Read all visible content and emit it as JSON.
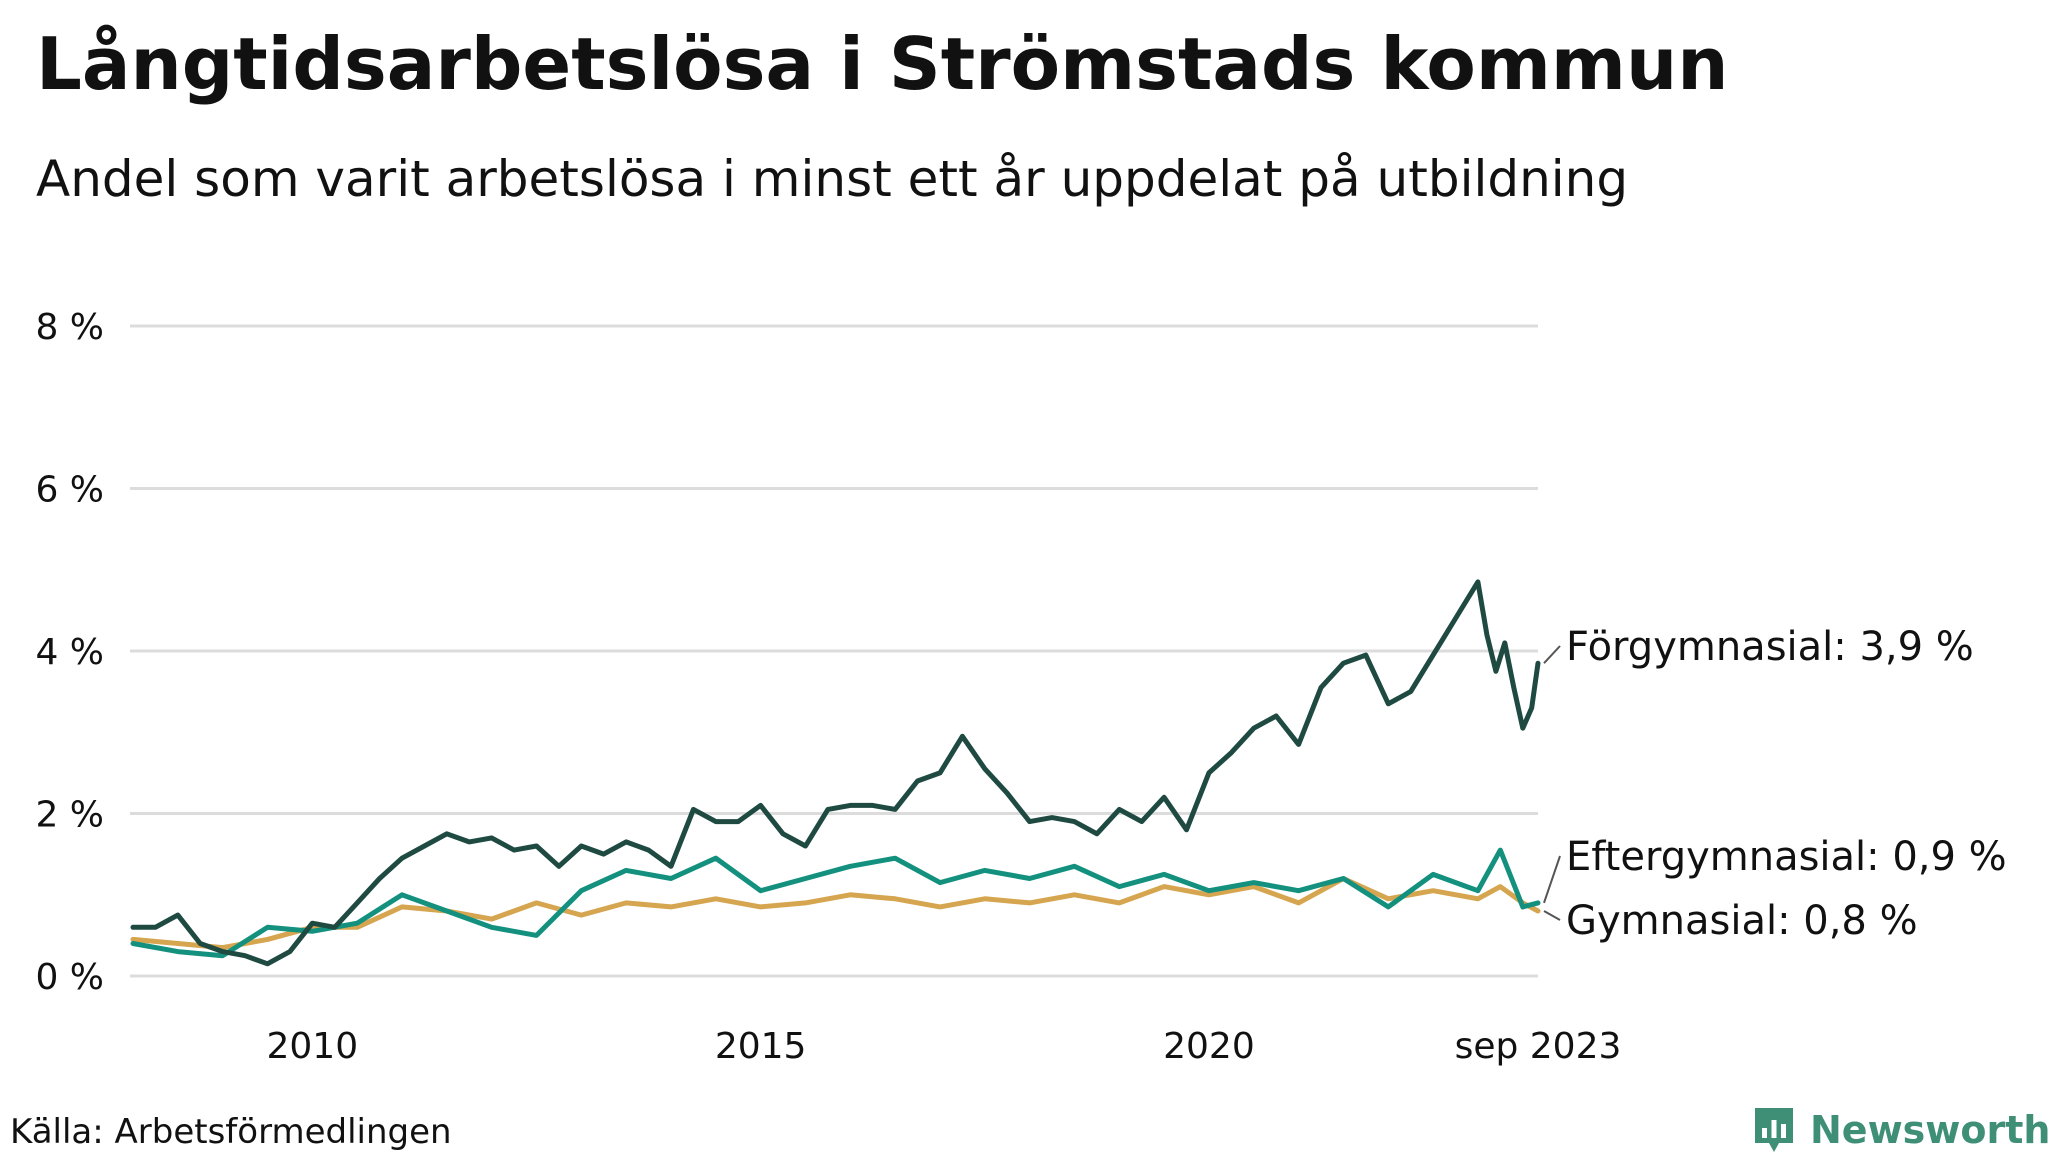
{
  "title": "Långtidsarbetslösa i Strömstads kommun",
  "subtitle": "Andel som varit arbetslösa i minst ett år uppdelat på utbildning",
  "source": "Källa: Arbetsförmedlingen",
  "logo": {
    "text": "Newsworthy",
    "icon": "newsworthy-logo-icon"
  },
  "colors": {
    "forgymnasial": "#1f4a42",
    "eftergymnasial": "#13917e",
    "gymnasial": "#d6a54f",
    "grid": "#dcdcdc",
    "logo": "#3f8f77"
  },
  "chart_data": {
    "type": "line",
    "title": "Långtidsarbetslösa i Strömstads kommun",
    "subtitle": "Andel som varit arbetslösa i minst ett år uppdelat på utbildning",
    "xlabel": "",
    "ylabel": "",
    "x_start": "2008-01",
    "x_end": "2023-09",
    "xlim": [
      2008.0,
      2023.67
    ],
    "ylim": [
      0,
      8.6
    ],
    "y_ticks": [
      {
        "value": 0,
        "label": "0 %"
      },
      {
        "value": 2,
        "label": "2 %"
      },
      {
        "value": 4,
        "label": "4 %"
      },
      {
        "value": 6,
        "label": "6 %"
      },
      {
        "value": 8,
        "label": "8 %"
      }
    ],
    "x_ticks": [
      {
        "value": 2010.0,
        "label": "2010"
      },
      {
        "value": 2015.0,
        "label": "2015"
      },
      {
        "value": 2020.0,
        "label": "2020"
      },
      {
        "value": 2023.67,
        "label": "sep 2023"
      }
    ],
    "grid": "horizontal",
    "legend": "direct labels at line ends (right)",
    "series": [
      {
        "name": "Förgymnasial",
        "end_label": "Förgymnasial: 3,9 %",
        "color": "#1f4a42",
        "points": [
          [
            2008.0,
            0.6
          ],
          [
            2008.25,
            0.6
          ],
          [
            2008.5,
            0.75
          ],
          [
            2008.75,
            0.4
          ],
          [
            2009.0,
            0.3
          ],
          [
            2009.25,
            0.25
          ],
          [
            2009.5,
            0.15
          ],
          [
            2009.75,
            0.3
          ],
          [
            2010.0,
            0.65
          ],
          [
            2010.25,
            0.6
          ],
          [
            2010.5,
            0.9
          ],
          [
            2010.75,
            1.2
          ],
          [
            2011.0,
            1.45
          ],
          [
            2011.25,
            1.6
          ],
          [
            2011.5,
            1.75
          ],
          [
            2011.75,
            1.65
          ],
          [
            2012.0,
            1.7
          ],
          [
            2012.25,
            1.55
          ],
          [
            2012.5,
            1.6
          ],
          [
            2012.75,
            1.35
          ],
          [
            2013.0,
            1.6
          ],
          [
            2013.25,
            1.5
          ],
          [
            2013.5,
            1.65
          ],
          [
            2013.75,
            1.55
          ],
          [
            2014.0,
            1.35
          ],
          [
            2014.25,
            2.05
          ],
          [
            2014.5,
            1.9
          ],
          [
            2014.75,
            1.9
          ],
          [
            2015.0,
            2.1
          ],
          [
            2015.25,
            1.75
          ],
          [
            2015.5,
            1.6
          ],
          [
            2015.75,
            2.05
          ],
          [
            2016.0,
            2.1
          ],
          [
            2016.25,
            2.1
          ],
          [
            2016.5,
            2.05
          ],
          [
            2016.75,
            2.4
          ],
          [
            2017.0,
            2.5
          ],
          [
            2017.25,
            2.95
          ],
          [
            2017.5,
            2.55
          ],
          [
            2017.75,
            2.25
          ],
          [
            2018.0,
            1.9
          ],
          [
            2018.25,
            1.95
          ],
          [
            2018.5,
            1.9
          ],
          [
            2018.75,
            1.75
          ],
          [
            2019.0,
            2.05
          ],
          [
            2019.25,
            1.9
          ],
          [
            2019.5,
            2.2
          ],
          [
            2019.75,
            1.8
          ],
          [
            2020.0,
            2.5
          ],
          [
            2020.25,
            2.75
          ],
          [
            2020.5,
            3.05
          ],
          [
            2020.75,
            3.2
          ],
          [
            2021.0,
            2.85
          ],
          [
            2021.25,
            3.55
          ],
          [
            2021.5,
            3.85
          ],
          [
            2021.75,
            3.95
          ],
          [
            2022.0,
            3.35
          ],
          [
            2022.25,
            3.5
          ],
          [
            2022.5,
            3.95
          ],
          [
            2022.75,
            4.4
          ],
          [
            2023.0,
            4.85
          ],
          [
            2023.1,
            4.2
          ],
          [
            2023.2,
            3.75
          ],
          [
            2023.3,
            4.1
          ],
          [
            2023.4,
            3.55
          ],
          [
            2023.5,
            3.05
          ],
          [
            2023.6,
            3.3
          ],
          [
            2023.67,
            3.85
          ]
        ]
      },
      {
        "name": "Eftergymnasial",
        "end_label": "Eftergymnasial: 0,9 %",
        "color": "#13917e",
        "points": [
          [
            2008.0,
            0.4
          ],
          [
            2008.5,
            0.3
          ],
          [
            2009.0,
            0.25
          ],
          [
            2009.5,
            0.6
          ],
          [
            2010.0,
            0.55
          ],
          [
            2010.5,
            0.65
          ],
          [
            2011.0,
            1.0
          ],
          [
            2011.5,
            0.8
          ],
          [
            2012.0,
            0.6
          ],
          [
            2012.5,
            0.5
          ],
          [
            2013.0,
            1.05
          ],
          [
            2013.5,
            1.3
          ],
          [
            2014.0,
            1.2
          ],
          [
            2014.5,
            1.45
          ],
          [
            2015.0,
            1.05
          ],
          [
            2015.5,
            1.2
          ],
          [
            2016.0,
            1.35
          ],
          [
            2016.5,
            1.45
          ],
          [
            2017.0,
            1.15
          ],
          [
            2017.5,
            1.3
          ],
          [
            2018.0,
            1.2
          ],
          [
            2018.5,
            1.35
          ],
          [
            2019.0,
            1.1
          ],
          [
            2019.5,
            1.25
          ],
          [
            2020.0,
            1.05
          ],
          [
            2020.5,
            1.15
          ],
          [
            2021.0,
            1.05
          ],
          [
            2021.5,
            1.2
          ],
          [
            2022.0,
            0.85
          ],
          [
            2022.5,
            1.25
          ],
          [
            2023.0,
            1.05
          ],
          [
            2023.25,
            1.55
          ],
          [
            2023.5,
            0.85
          ],
          [
            2023.67,
            0.9
          ]
        ]
      },
      {
        "name": "Gymnasial",
        "end_label": "Gymnasial: 0,8 %",
        "color": "#d6a54f",
        "points": [
          [
            2008.0,
            0.45
          ],
          [
            2008.5,
            0.4
          ],
          [
            2009.0,
            0.35
          ],
          [
            2009.5,
            0.45
          ],
          [
            2010.0,
            0.6
          ],
          [
            2010.5,
            0.6
          ],
          [
            2011.0,
            0.85
          ],
          [
            2011.5,
            0.8
          ],
          [
            2012.0,
            0.7
          ],
          [
            2012.5,
            0.9
          ],
          [
            2013.0,
            0.75
          ],
          [
            2013.5,
            0.9
          ],
          [
            2014.0,
            0.85
          ],
          [
            2014.5,
            0.95
          ],
          [
            2015.0,
            0.85
          ],
          [
            2015.5,
            0.9
          ],
          [
            2016.0,
            1.0
          ],
          [
            2016.5,
            0.95
          ],
          [
            2017.0,
            0.85
          ],
          [
            2017.5,
            0.95
          ],
          [
            2018.0,
            0.9
          ],
          [
            2018.5,
            1.0
          ],
          [
            2019.0,
            0.9
          ],
          [
            2019.5,
            1.1
          ],
          [
            2020.0,
            1.0
          ],
          [
            2020.5,
            1.1
          ],
          [
            2021.0,
            0.9
          ],
          [
            2021.5,
            1.2
          ],
          [
            2022.0,
            0.95
          ],
          [
            2022.5,
            1.05
          ],
          [
            2023.0,
            0.95
          ],
          [
            2023.25,
            1.1
          ],
          [
            2023.5,
            0.9
          ],
          [
            2023.67,
            0.8
          ]
        ]
      }
    ]
  }
}
